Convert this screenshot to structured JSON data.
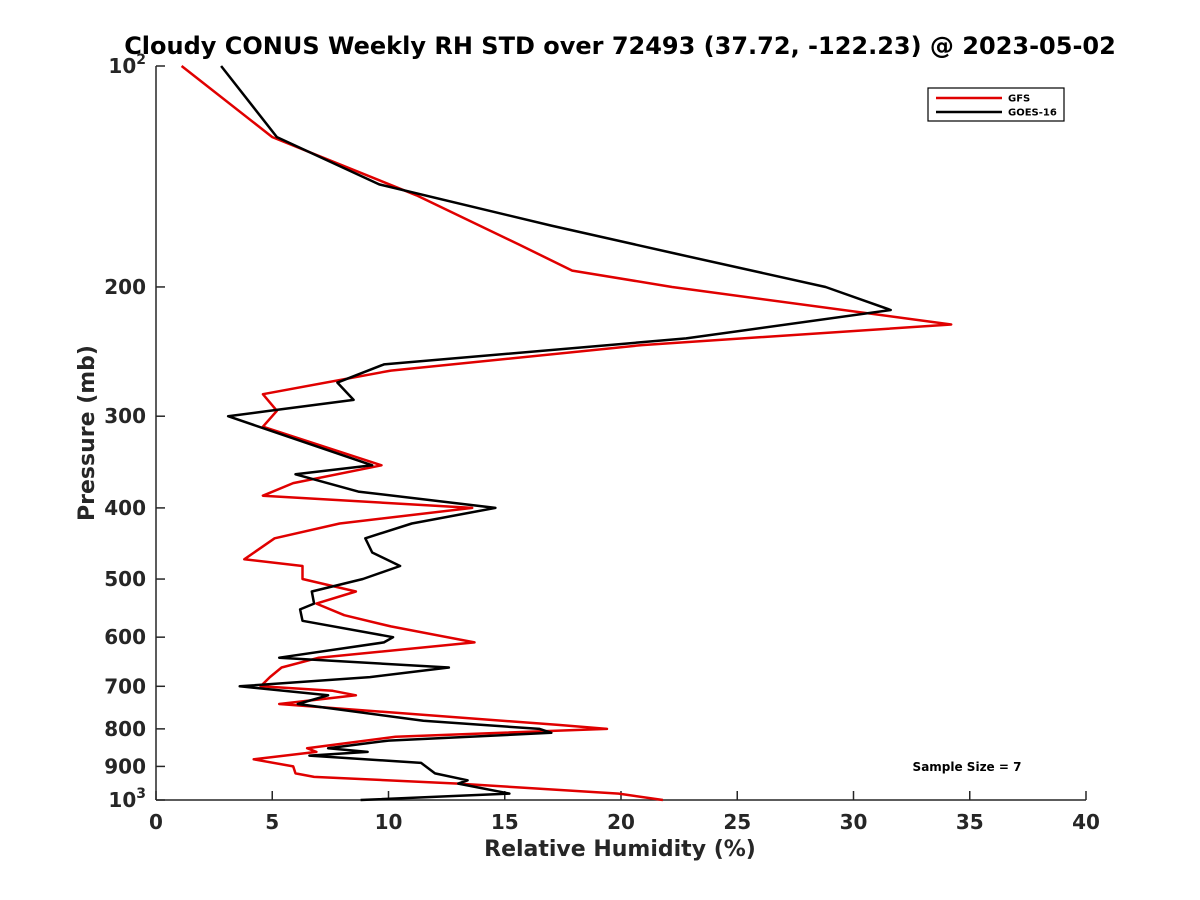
{
  "chart_data": {
    "type": "line",
    "title": "Cloudy CONUS Weekly RH STD over 72493 (37.72, -122.23) @ 2023-05-02",
    "xlabel": "Relative Humidity (%)",
    "ylabel": "Pressure (mb)",
    "xlim": [
      0,
      40
    ],
    "ylim": [
      100,
      1000
    ],
    "y_scale": "log",
    "y_reversed": true,
    "x_ticks": [
      "0",
      "5",
      "10",
      "15",
      "20",
      "25",
      "30",
      "35",
      "40"
    ],
    "y_ticks": [
      {
        "value": 100,
        "base": "10",
        "exp": "2"
      },
      {
        "value": 200,
        "label": "200"
      },
      {
        "value": 300,
        "label": "300"
      },
      {
        "value": 400,
        "label": "400"
      },
      {
        "value": 500,
        "label": "500"
      },
      {
        "value": 600,
        "label": "600"
      },
      {
        "value": 700,
        "label": "700"
      },
      {
        "value": 800,
        "label": "800"
      },
      {
        "value": 900,
        "label": "900"
      },
      {
        "value": 1000,
        "base": "10",
        "exp": "3"
      }
    ],
    "legend_position": "top-right",
    "annotation": "Sample Size = 7",
    "series": [
      {
        "name": "GFS",
        "color": "#e00000",
        "points": [
          [
            1.1,
            100
          ],
          [
            5.0,
            125
          ],
          [
            11.2,
            150
          ],
          [
            15.6,
            175
          ],
          [
            17.9,
            190
          ],
          [
            22.2,
            200
          ],
          [
            34.2,
            225
          ],
          [
            20.9,
            240
          ],
          [
            10.1,
            260
          ],
          [
            4.6,
            280
          ],
          [
            5.2,
            295
          ],
          [
            4.6,
            310
          ],
          [
            9.7,
            350
          ],
          [
            5.9,
            370
          ],
          [
            4.6,
            385
          ],
          [
            13.6,
            400
          ],
          [
            7.9,
            420
          ],
          [
            5.1,
            440
          ],
          [
            3.8,
            470
          ],
          [
            6.3,
            480
          ],
          [
            6.3,
            500
          ],
          [
            8.6,
            520
          ],
          [
            6.9,
            540
          ],
          [
            8.1,
            560
          ],
          [
            10.1,
            580
          ],
          [
            13.7,
            610
          ],
          [
            7.0,
            640
          ],
          [
            5.4,
            660
          ],
          [
            4.9,
            680
          ],
          [
            4.5,
            700
          ],
          [
            7.6,
            710
          ],
          [
            8.6,
            720
          ],
          [
            5.3,
            740
          ],
          [
            17.3,
            790
          ],
          [
            19.4,
            800
          ],
          [
            10.3,
            820
          ],
          [
            6.5,
            850
          ],
          [
            6.9,
            860
          ],
          [
            4.2,
            880
          ],
          [
            5.9,
            900
          ],
          [
            6.0,
            920
          ],
          [
            6.8,
            930
          ],
          [
            13.0,
            950
          ],
          [
            19.9,
            980
          ],
          [
            21.8,
            1000
          ]
        ]
      },
      {
        "name": "GOES-16",
        "color": "#000000",
        "points": [
          [
            2.8,
            100
          ],
          [
            5.2,
            125
          ],
          [
            9.6,
            145
          ],
          [
            17.0,
            165
          ],
          [
            22.3,
            180
          ],
          [
            28.8,
            200
          ],
          [
            31.6,
            215
          ],
          [
            22.8,
            235
          ],
          [
            9.8,
            255
          ],
          [
            7.8,
            270
          ],
          [
            8.5,
            285
          ],
          [
            4.9,
            295
          ],
          [
            3.1,
            300
          ],
          [
            5.7,
            320
          ],
          [
            9.3,
            350
          ],
          [
            6.0,
            360
          ],
          [
            8.7,
            380
          ],
          [
            14.6,
            400
          ],
          [
            11.0,
            420
          ],
          [
            9.0,
            440
          ],
          [
            9.3,
            460
          ],
          [
            10.5,
            480
          ],
          [
            8.9,
            500
          ],
          [
            6.7,
            520
          ],
          [
            6.8,
            540
          ],
          [
            6.2,
            550
          ],
          [
            6.3,
            570
          ],
          [
            10.2,
            600
          ],
          [
            9.8,
            610
          ],
          [
            5.3,
            640
          ],
          [
            12.6,
            660
          ],
          [
            9.2,
            680
          ],
          [
            3.6,
            700
          ],
          [
            7.4,
            720
          ],
          [
            6.1,
            740
          ],
          [
            11.5,
            780
          ],
          [
            16.5,
            800
          ],
          [
            17.0,
            810
          ],
          [
            10.0,
            830
          ],
          [
            7.4,
            850
          ],
          [
            9.1,
            860
          ],
          [
            6.6,
            870
          ],
          [
            11.4,
            890
          ],
          [
            12.0,
            920
          ],
          [
            13.4,
            940
          ],
          [
            13.0,
            950
          ],
          [
            15.2,
            980
          ],
          [
            8.8,
            1000
          ]
        ]
      }
    ]
  }
}
